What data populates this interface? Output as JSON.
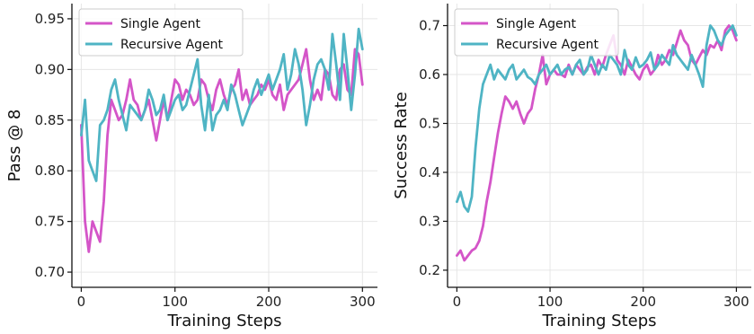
{
  "colors": {
    "single": "#d455c8",
    "recursive": "#4fb4c4"
  },
  "chart_data": [
    {
      "type": "line",
      "title": "",
      "xlabel": "Training Steps",
      "ylabel": "Pass @ 8",
      "xlim": [
        -10,
        316
      ],
      "ylim": [
        0.685,
        0.965
      ],
      "xticks": [
        0,
        100,
        200,
        300
      ],
      "xtick_labels": [
        "0",
        "100",
        "200",
        "300"
      ],
      "yticks": [
        0.7,
        0.75,
        0.8,
        0.85,
        0.9,
        0.95
      ],
      "ytick_labels": [
        "0.70",
        "0.75",
        "0.80",
        "0.85",
        "0.90",
        "0.95"
      ],
      "grid": true,
      "legend": "top-left",
      "series": [
        {
          "name": "Single Agent",
          "color": "#d455c8",
          "x": [
            0,
            4,
            8,
            12,
            16,
            20,
            24,
            28,
            32,
            36,
            40,
            44,
            48,
            52,
            56,
            60,
            64,
            68,
            72,
            76,
            80,
            84,
            88,
            92,
            96,
            100,
            104,
            108,
            112,
            116,
            120,
            124,
            128,
            132,
            136,
            140,
            144,
            148,
            152,
            156,
            160,
            164,
            168,
            172,
            176,
            180,
            184,
            188,
            192,
            196,
            200,
            204,
            208,
            212,
            216,
            220,
            224,
            228,
            232,
            236,
            240,
            244,
            248,
            252,
            256,
            260,
            264,
            268,
            272,
            276,
            280,
            284,
            288,
            292,
            296,
            300
          ],
          "values": [
            0.845,
            0.75,
            0.72,
            0.75,
            0.74,
            0.73,
            0.77,
            0.835,
            0.87,
            0.86,
            0.85,
            0.855,
            0.87,
            0.89,
            0.87,
            0.865,
            0.85,
            0.86,
            0.87,
            0.85,
            0.83,
            0.85,
            0.87,
            0.85,
            0.87,
            0.89,
            0.885,
            0.87,
            0.88,
            0.875,
            0.865,
            0.87,
            0.89,
            0.885,
            0.87,
            0.86,
            0.88,
            0.89,
            0.875,
            0.865,
            0.88,
            0.885,
            0.9,
            0.87,
            0.88,
            0.865,
            0.87,
            0.875,
            0.885,
            0.88,
            0.89,
            0.875,
            0.87,
            0.885,
            0.86,
            0.875,
            0.88,
            0.885,
            0.89,
            0.905,
            0.92,
            0.89,
            0.87,
            0.88,
            0.87,
            0.9,
            0.895,
            0.875,
            0.87,
            0.9,
            0.905,
            0.88,
            0.875,
            0.92,
            0.915,
            0.885
          ]
        },
        {
          "name": "Recursive Agent",
          "color": "#4fb4c4",
          "x": [
            0,
            4,
            8,
            12,
            16,
            20,
            24,
            28,
            32,
            36,
            40,
            44,
            48,
            52,
            56,
            60,
            64,
            68,
            72,
            76,
            80,
            84,
            88,
            92,
            96,
            100,
            104,
            108,
            112,
            116,
            120,
            124,
            128,
            132,
            136,
            140,
            144,
            148,
            152,
            156,
            160,
            164,
            168,
            172,
            176,
            180,
            184,
            188,
            192,
            196,
            200,
            204,
            208,
            212,
            216,
            220,
            224,
            228,
            232,
            236,
            240,
            244,
            248,
            252,
            256,
            260,
            264,
            268,
            272,
            276,
            280,
            284,
            288,
            292,
            296,
            300
          ],
          "values": [
            0.835,
            0.87,
            0.81,
            0.8,
            0.79,
            0.845,
            0.85,
            0.86,
            0.88,
            0.89,
            0.87,
            0.855,
            0.84,
            0.865,
            0.86,
            0.855,
            0.85,
            0.86,
            0.88,
            0.87,
            0.855,
            0.86,
            0.875,
            0.85,
            0.86,
            0.87,
            0.875,
            0.86,
            0.865,
            0.88,
            0.895,
            0.91,
            0.865,
            0.84,
            0.875,
            0.84,
            0.855,
            0.86,
            0.87,
            0.86,
            0.885,
            0.875,
            0.86,
            0.845,
            0.855,
            0.865,
            0.88,
            0.89,
            0.875,
            0.885,
            0.895,
            0.88,
            0.89,
            0.9,
            0.915,
            0.88,
            0.895,
            0.92,
            0.905,
            0.88,
            0.845,
            0.865,
            0.89,
            0.905,
            0.91,
            0.9,
            0.88,
            0.935,
            0.905,
            0.87,
            0.935,
            0.9,
            0.86,
            0.895,
            0.94,
            0.92
          ]
        }
      ]
    },
    {
      "type": "line",
      "title": "",
      "xlabel": "Training Steps",
      "ylabel": "Success Rate",
      "xlim": [
        -10,
        316
      ],
      "ylim": [
        0.165,
        0.745
      ],
      "xticks": [
        0,
        100,
        200,
        300
      ],
      "xtick_labels": [
        "0",
        "100",
        "200",
        "300"
      ],
      "yticks": [
        0.2,
        0.3,
        0.4,
        0.5,
        0.6,
        0.7
      ],
      "ytick_labels": [
        "0.2",
        "0.3",
        "0.4",
        "0.5",
        "0.6",
        "0.7"
      ],
      "grid": true,
      "legend": "top-left",
      "series": [
        {
          "name": "Single Agent",
          "color": "#d455c8",
          "x": [
            0,
            4,
            8,
            12,
            16,
            20,
            24,
            28,
            32,
            36,
            40,
            44,
            48,
            52,
            56,
            60,
            64,
            68,
            72,
            76,
            80,
            84,
            88,
            92,
            96,
            100,
            104,
            108,
            112,
            116,
            120,
            124,
            128,
            132,
            136,
            140,
            144,
            148,
            152,
            156,
            160,
            164,
            168,
            172,
            176,
            180,
            184,
            188,
            192,
            196,
            200,
            204,
            208,
            212,
            216,
            220,
            224,
            228,
            232,
            236,
            240,
            244,
            248,
            252,
            256,
            260,
            264,
            268,
            272,
            276,
            280,
            284,
            288,
            292,
            296,
            300
          ],
          "values": [
            0.23,
            0.24,
            0.22,
            0.23,
            0.24,
            0.245,
            0.26,
            0.29,
            0.34,
            0.38,
            0.43,
            0.48,
            0.52,
            0.555,
            0.545,
            0.53,
            0.545,
            0.52,
            0.5,
            0.52,
            0.53,
            0.57,
            0.6,
            0.64,
            0.58,
            0.6,
            0.61,
            0.6,
            0.6,
            0.595,
            0.62,
            0.6,
            0.62,
            0.61,
            0.6,
            0.615,
            0.62,
            0.6,
            0.63,
            0.615,
            0.64,
            0.66,
            0.68,
            0.63,
            0.62,
            0.6,
            0.63,
            0.615,
            0.6,
            0.59,
            0.61,
            0.62,
            0.6,
            0.61,
            0.64,
            0.62,
            0.63,
            0.65,
            0.64,
            0.665,
            0.69,
            0.67,
            0.66,
            0.63,
            0.62,
            0.635,
            0.65,
            0.64,
            0.66,
            0.655,
            0.67,
            0.65,
            0.69,
            0.7,
            0.69,
            0.67
          ]
        },
        {
          "name": "Recursive Agent",
          "color": "#4fb4c4",
          "x": [
            0,
            4,
            8,
            12,
            16,
            20,
            24,
            28,
            32,
            36,
            40,
            44,
            48,
            52,
            56,
            60,
            64,
            68,
            72,
            76,
            80,
            84,
            88,
            92,
            96,
            100,
            104,
            108,
            112,
            116,
            120,
            124,
            128,
            132,
            136,
            140,
            144,
            148,
            152,
            156,
            160,
            164,
            168,
            172,
            176,
            180,
            184,
            188,
            192,
            196,
            200,
            204,
            208,
            212,
            216,
            220,
            224,
            228,
            232,
            236,
            240,
            244,
            248,
            252,
            256,
            260,
            264,
            268,
            272,
            276,
            280,
            284,
            288,
            292,
            296,
            300
          ],
          "values": [
            0.34,
            0.36,
            0.33,
            0.32,
            0.35,
            0.45,
            0.53,
            0.58,
            0.6,
            0.62,
            0.59,
            0.61,
            0.6,
            0.59,
            0.61,
            0.62,
            0.59,
            0.6,
            0.61,
            0.595,
            0.59,
            0.58,
            0.6,
            0.61,
            0.62,
            0.6,
            0.61,
            0.62,
            0.6,
            0.61,
            0.615,
            0.6,
            0.62,
            0.63,
            0.6,
            0.61,
            0.64,
            0.62,
            0.6,
            0.62,
            0.61,
            0.64,
            0.63,
            0.62,
            0.6,
            0.65,
            0.62,
            0.61,
            0.635,
            0.615,
            0.62,
            0.63,
            0.645,
            0.61,
            0.62,
            0.64,
            0.63,
            0.62,
            0.66,
            0.64,
            0.63,
            0.62,
            0.61,
            0.64,
            0.62,
            0.6,
            0.575,
            0.66,
            0.7,
            0.69,
            0.67,
            0.66,
            0.68,
            0.69,
            0.7,
            0.68
          ]
        }
      ]
    }
  ]
}
